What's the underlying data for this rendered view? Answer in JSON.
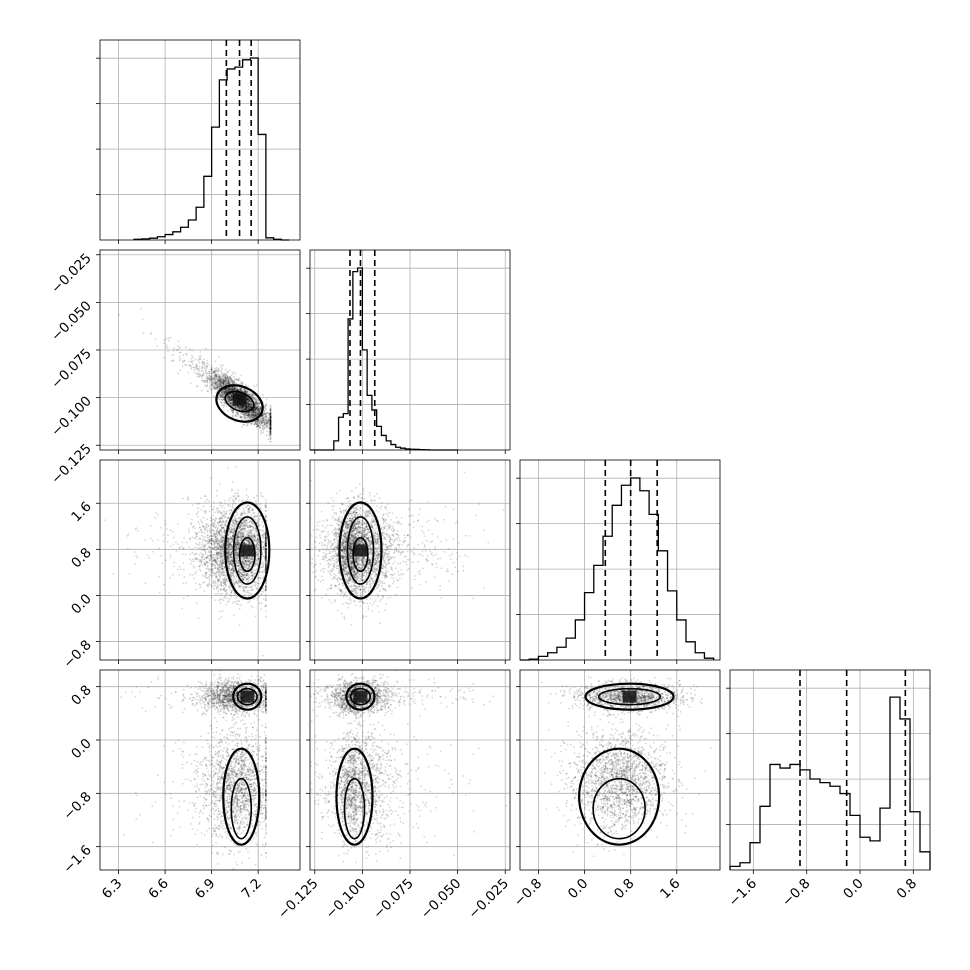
{
  "chart_data": {
    "type": "corner",
    "n_parameters": 4,
    "grid": true,
    "parameters": [
      {
        "index": 0,
        "range": [
          6.18,
          7.47
        ],
        "ticks": [
          6.3,
          6.6,
          6.9,
          7.2
        ],
        "tick_labels": [
          "6.3",
          "6.6",
          "6.9",
          "7.2"
        ],
        "quantiles": [
          6.995,
          7.08,
          7.155
        ],
        "hist_bins": [
          6.4,
          6.45,
          6.5,
          6.55,
          6.6,
          6.65,
          6.7,
          6.75,
          6.8,
          6.85,
          6.9,
          6.95,
          7.0,
          7.05,
          7.1,
          7.15,
          7.2,
          7.25,
          7.3,
          7.35
        ],
        "hist_counts": [
          0.004,
          0.006,
          0.01,
          0.018,
          0.03,
          0.045,
          0.07,
          0.11,
          0.18,
          0.35,
          0.62,
          0.88,
          0.94,
          0.95,
          0.99,
          1.0,
          0.58,
          0.012,
          0.004,
          0.0
        ],
        "mode": 7.13,
        "spread": 0.12
      },
      {
        "index": 1,
        "range": [
          -0.1275,
          -0.0225
        ],
        "ticks": [
          -0.125,
          -0.1,
          -0.075,
          -0.05,
          -0.025
        ],
        "tick_labels": [
          "−0.125",
          "−0.100",
          "−0.075",
          "−0.050",
          "−0.025"
        ],
        "quantiles": [
          -0.1065,
          -0.101,
          -0.0935
        ],
        "hist_bins": [
          -0.1275,
          -0.125,
          -0.1225,
          -0.12,
          -0.1175,
          -0.115,
          -0.1125,
          -0.11,
          -0.1075,
          -0.105,
          -0.1025,
          -0.1,
          -0.0975,
          -0.095,
          -0.0925,
          -0.09,
          -0.0875,
          -0.085,
          -0.0825,
          -0.08,
          -0.0775,
          -0.075,
          -0.0725,
          -0.07,
          -0.0675,
          -0.065,
          -0.0625,
          -0.06,
          -0.0575,
          -0.055,
          -0.0525,
          -0.05
        ],
        "hist_counts": [
          0.0,
          0.0,
          0.0,
          0.0,
          0.0,
          0.05,
          0.18,
          0.2,
          0.72,
          0.98,
          1.0,
          0.55,
          0.3,
          0.22,
          0.13,
          0.08,
          0.05,
          0.03,
          0.015,
          0.01,
          0.006,
          0.004,
          0.003,
          0.002,
          0.001,
          0.0,
          0.0,
          0.0,
          0.0,
          0.0,
          0.0
        ],
        "mode": -0.101,
        "spread": 0.0055
      },
      {
        "index": 2,
        "range": [
          -1.12,
          2.35
        ],
        "ticks": [
          -0.8,
          0.0,
          0.8,
          1.6
        ],
        "tick_labels": [
          "−0.8",
          "0.0",
          "0.8",
          "1.6"
        ],
        "quantiles": [
          0.36,
          0.8,
          1.26
        ],
        "hist_bins": [
          -1.12,
          -0.96,
          -0.8,
          -0.64,
          -0.48,
          -0.32,
          -0.16,
          0.0,
          0.16,
          0.32,
          0.48,
          0.64,
          0.8,
          0.96,
          1.12,
          1.28,
          1.44,
          1.6,
          1.76,
          1.92,
          2.08,
          2.24
        ],
        "hist_counts": [
          0.0,
          0.005,
          0.02,
          0.04,
          0.07,
          0.12,
          0.22,
          0.37,
          0.52,
          0.68,
          0.85,
          0.96,
          1.0,
          0.93,
          0.8,
          0.6,
          0.38,
          0.22,
          0.1,
          0.04,
          0.01
        ],
        "mode": 0.78,
        "spread": 0.38
      },
      {
        "index": 3,
        "range": [
          -1.95,
          1.05
        ],
        "ticks": [
          -1.6,
          -0.8,
          0.0,
          0.8
        ],
        "tick_labels": [
          "−1.6",
          "−0.8",
          "0.0",
          "0.8"
        ],
        "quantiles": [
          -0.9,
          -0.2,
          0.68
        ],
        "hist_bins": [
          -1.95,
          -1.8,
          -1.65,
          -1.5,
          -1.35,
          -1.2,
          -1.05,
          -0.9,
          -0.75,
          -0.6,
          -0.45,
          -0.3,
          -0.15,
          0.0,
          0.15,
          0.3,
          0.45,
          0.6,
          0.75,
          0.9,
          1.05
        ],
        "hist_counts": [
          0.02,
          0.04,
          0.15,
          0.35,
          0.58,
          0.56,
          0.58,
          0.55,
          0.5,
          0.48,
          0.46,
          0.42,
          0.3,
          0.18,
          0.16,
          0.34,
          0.95,
          0.83,
          0.32,
          0.1
        ],
        "mode": 0.6,
        "spread": 0.4
      }
    ],
    "pairs": [
      {
        "x": 0,
        "y": 1,
        "correlation": -0.85
      },
      {
        "x": 0,
        "y": 2,
        "correlation": 0.05
      },
      {
        "x": 0,
        "y": 3,
        "correlation": 0.25
      },
      {
        "x": 1,
        "y": 2,
        "correlation": 0.0
      },
      {
        "x": 1,
        "y": 3,
        "correlation": -0.25
      },
      {
        "x": 2,
        "y": 3,
        "correlation": 0.1
      }
    ],
    "scatter_color": "#000000",
    "line_color": "#000000"
  }
}
